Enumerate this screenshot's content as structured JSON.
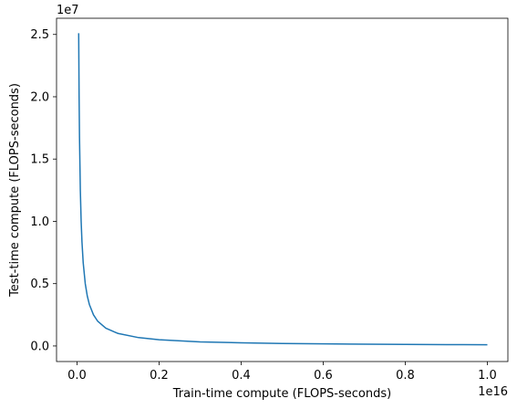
{
  "chart_data": {
    "type": "line",
    "title": "",
    "xlabel": "Train-time compute (FLOPS-seconds)",
    "ylabel": "Test-time compute (FLOPS-seconds)",
    "x_offset_label": "1e16",
    "y_offset_label": "1e7",
    "xlim": [
      -0.05,
      1.05
    ],
    "ylim": [
      -1.25,
      26.3
    ],
    "x_ticks": [
      {
        "value": 0.0,
        "label": "0.0"
      },
      {
        "value": 0.2,
        "label": "0.2"
      },
      {
        "value": 0.4,
        "label": "0.4"
      },
      {
        "value": 0.6,
        "label": "0.6"
      },
      {
        "value": 0.8,
        "label": "0.8"
      },
      {
        "value": 1.0,
        "label": "1.0"
      }
    ],
    "y_ticks": [
      {
        "value": 0.0,
        "label": "0.0"
      },
      {
        "value": 0.5,
        "label": "0.5"
      },
      {
        "value": 1.0,
        "label": "1.0"
      },
      {
        "value": 1.5,
        "label": "1.5"
      },
      {
        "value": 2.0,
        "label": "2.0"
      },
      {
        "value": 2.5,
        "label": "2.5"
      }
    ],
    "grid": false,
    "legend": "none",
    "series": [
      {
        "color": "#1f77b4",
        "x": [
          0.004,
          0.005,
          0.006,
          0.008,
          0.01,
          0.012,
          0.015,
          0.02,
          0.025,
          0.03,
          0.04,
          0.05,
          0.07,
          0.1,
          0.15,
          0.2,
          0.3,
          0.4,
          0.5,
          0.6,
          0.7,
          0.8,
          0.9,
          1.0
        ],
        "y": [
          2.51,
          2.0,
          1.67,
          1.25,
          1.0,
          0.835,
          0.668,
          0.5,
          0.4,
          0.333,
          0.25,
          0.2,
          0.143,
          0.1,
          0.067,
          0.05,
          0.033,
          0.025,
          0.02,
          0.017,
          0.014,
          0.0125,
          0.011,
          0.01
        ]
      }
    ]
  }
}
